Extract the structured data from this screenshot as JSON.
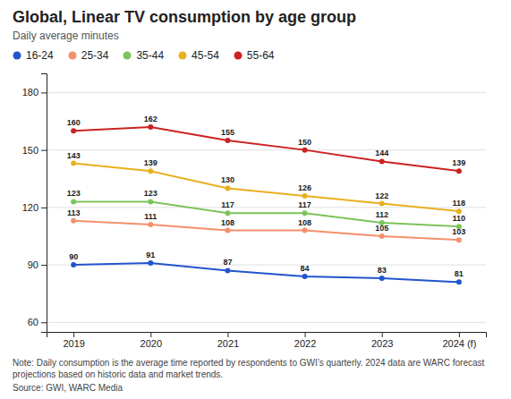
{
  "chart_data": {
    "type": "line",
    "title": "Global, Linear TV consumption by age group",
    "subtitle": "Daily average minutes",
    "categories": [
      "2019",
      "2020",
      "2021",
      "2022",
      "2023",
      "2024 (f)"
    ],
    "series": [
      {
        "name": "16-24",
        "color": "#2255cc",
        "marker": "circle",
        "values": [
          90,
          91,
          87,
          84,
          83,
          81
        ]
      },
      {
        "name": "25-34",
        "color": "#f4906a",
        "marker": "circle",
        "values": [
          113,
          111,
          108,
          108,
          105,
          103
        ]
      },
      {
        "name": "35-44",
        "color": "#7dc45a",
        "marker": "circle",
        "values": [
          123,
          123,
          117,
          117,
          112,
          110
        ]
      },
      {
        "name": "45-54",
        "color": "#e8b020",
        "marker": "circle",
        "values": [
          143,
          139,
          130,
          126,
          122,
          118
        ]
      },
      {
        "name": "55-64",
        "color": "#cc2222",
        "marker": "circle",
        "values": [
          160,
          162,
          155,
          150,
          144,
          139
        ]
      }
    ],
    "ylim": [
      55,
      190
    ],
    "yticks": [
      60,
      90,
      120,
      150,
      180
    ],
    "grid": true,
    "data_labels": true,
    "legend": "top-left",
    "annotations": [
      "Note: Daily consumption is the average time reported by respondents to GWI’s quarterly. 2024 data are WARC forecast projections based on historic data and market trends.",
      "Source: GWI, WARC Media"
    ]
  }
}
